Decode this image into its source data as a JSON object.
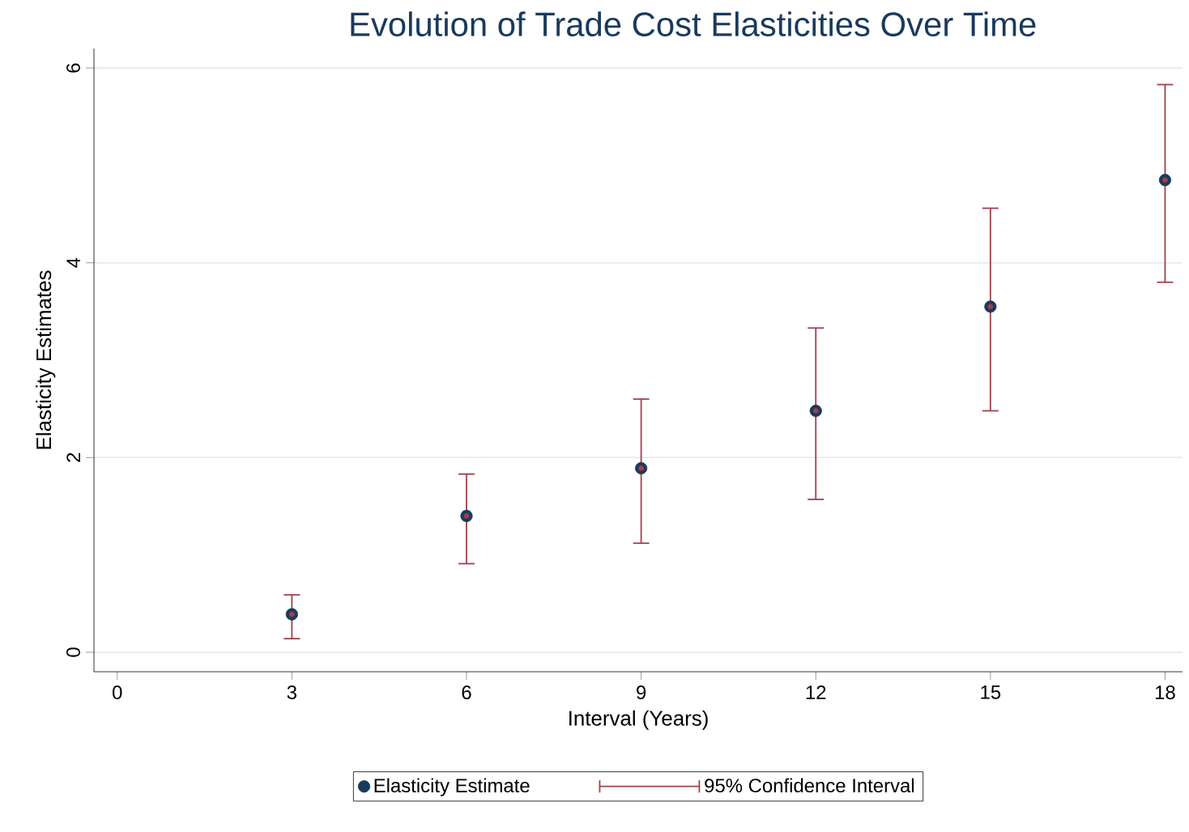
{
  "chart_data": {
    "type": "scatter",
    "title": "Evolution of Trade Cost Elasticities Over Time",
    "xlabel": "Interval (Years)",
    "ylabel": "Elasticity Estimates",
    "x": [
      3,
      6,
      9,
      12,
      15,
      18
    ],
    "series": [
      {
        "name": "Elasticity Estimate",
        "color": "#1a3a5c",
        "values": [
          0.39,
          1.4,
          1.89,
          2.48,
          3.55,
          4.85
        ],
        "marker": "circle"
      },
      {
        "name": "95% Confidence Interval",
        "color": "#a0404a",
        "values": [
          0.39,
          1.4,
          1.89,
          2.48,
          3.55,
          4.85
        ],
        "errors": [
          [
            0.14,
            0.59
          ],
          [
            0.91,
            1.83
          ],
          [
            1.12,
            2.6
          ],
          [
            1.57,
            3.33
          ],
          [
            2.48,
            4.56
          ],
          [
            3.8,
            5.83
          ]
        ]
      }
    ],
    "xlim": [
      -0.4,
      18.3
    ],
    "ylim": [
      -0.2,
      6.2
    ],
    "xticks": [
      0,
      3,
      6,
      9,
      12,
      15,
      18
    ],
    "yticks": [
      0,
      2,
      4,
      6
    ],
    "grid": "y",
    "legend": "bottom"
  }
}
